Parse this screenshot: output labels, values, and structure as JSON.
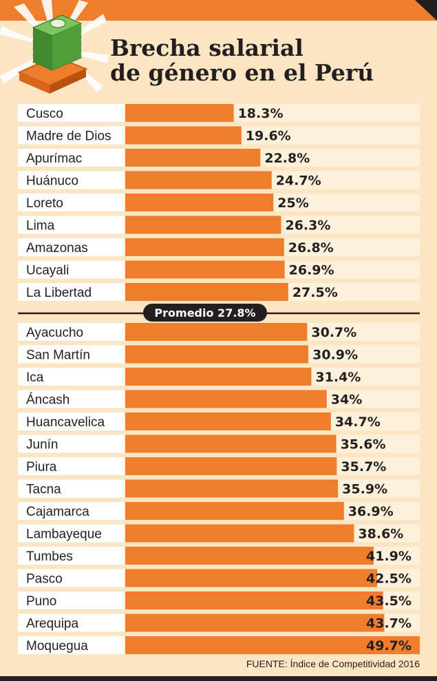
{
  "header": {
    "title_line1": "Brecha salarial",
    "title_line2": "de género en el Perú"
  },
  "chart_data": {
    "type": "bar",
    "orientation": "horizontal",
    "title": "Brecha salarial de género en el Perú",
    "categories": [
      "Cusco",
      "Madre de Dios",
      "Apurímac",
      "Huánuco",
      "Loreto",
      "Lima",
      "Amazonas",
      "Ucayali",
      "La Libertad",
      "Ayacucho",
      "San Martín",
      "Ica",
      "Áncash",
      "Huancavelica",
      "Junín",
      "Piura",
      "Tacna",
      "Cajamarca",
      "Lambayeque",
      "Tumbes",
      "Pasco",
      "Puno",
      "Arequipa",
      "Moquegua"
    ],
    "values": [
      18.3,
      19.6,
      22.8,
      24.7,
      25,
      26.3,
      26.8,
      26.9,
      27.5,
      30.7,
      30.9,
      31.4,
      34,
      34.7,
      35.6,
      35.7,
      35.9,
      36.9,
      38.6,
      41.9,
      42.5,
      43.5,
      43.7,
      49.7
    ],
    "value_labels": [
      "18.3%",
      "19.6%",
      "22.8%",
      "24.7%",
      "25%",
      "26.3%",
      "26.8%",
      "26.9%",
      "27.5%",
      "30.7%",
      "30.9%",
      "31.4%",
      "34%",
      "34.7%",
      "35.6%",
      "35.7%",
      "35.9%",
      "36.9%",
      "38.6%",
      "41.9%",
      "42.5%",
      "43.5%",
      "43.7%",
      "49.7%"
    ],
    "xlim": [
      0,
      49.7
    ],
    "grid": false,
    "reference_line": {
      "value": 27.8,
      "label": "Promedio 27.8%"
    },
    "colors": {
      "bar": "#f07d2c",
      "row_bg": "#fdf1dc",
      "page_bg": "#fbe5c3",
      "text": "#231f20",
      "label_band": "#ffffff"
    }
  },
  "source": {
    "text": "FUENTE: Índice de Competitividad 2016"
  }
}
